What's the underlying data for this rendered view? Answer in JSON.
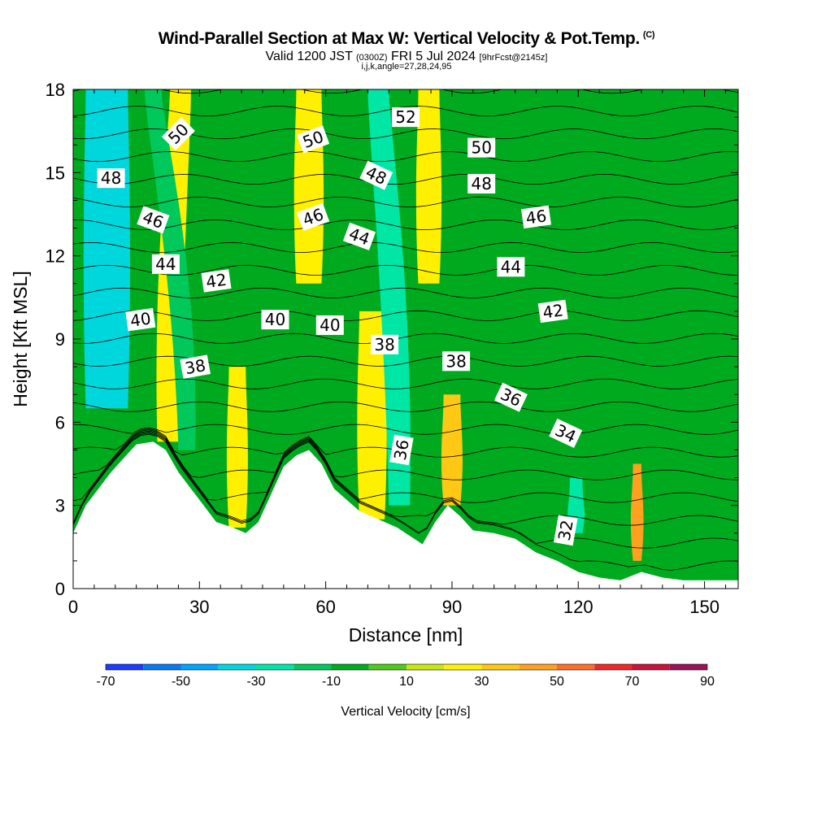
{
  "header": {
    "title": "Wind-Parallel Section at Max W: Vertical Velocity & Pot.Temp.",
    "copyright": "(C)",
    "valid_prefix": "Valid 1200 JST",
    "valid_utc": "(0300Z)",
    "valid_date": "FRI 5 Jul 2024",
    "forecast": "[9hrFcst@2145z]",
    "params": "i,j,k,angle=27,28,24,95"
  },
  "chart_data": {
    "type": "heatmap",
    "title": "Wind-Parallel Section at Max W: Vertical Velocity & Pot.Temp.",
    "xlabel": "Distance [nm]",
    "ylabel": "Height [Kft MSL]",
    "xlim": [
      0,
      158
    ],
    "ylim": [
      0,
      18
    ],
    "x_ticks": [
      "0",
      "30",
      "60",
      "90",
      "120",
      "150"
    ],
    "y_ticks": [
      "0",
      "3",
      "6",
      "9",
      "12",
      "15",
      "18"
    ],
    "colorbar": {
      "label": "Vertical Velocity [cm/s]",
      "tick_labels": [
        "-70",
        "-50",
        "-30",
        "-10",
        "10",
        "30",
        "50",
        "70",
        "90"
      ],
      "bins": [
        -70,
        -60,
        -50,
        -40,
        -30,
        -20,
        -10,
        0,
        10,
        20,
        30,
        40,
        50,
        60,
        70,
        80,
        90
      ],
      "colors": [
        "#1e3cff",
        "#0a78f0",
        "#00a5ff",
        "#00d7dc",
        "#00e6a5",
        "#00c85a",
        "#00aa1e",
        "#50c81e",
        "#c8e614",
        "#fff000",
        "#ffc814",
        "#ffa01e",
        "#ff6e28",
        "#f02828",
        "#c8143c",
        "#9b145a",
        "#6e0a8c"
      ]
    },
    "vertical_velocity_bands": [
      {
        "x": 3,
        "w": 10,
        "top_x_shift": 0,
        "top_y": 18,
        "bottom_y": 6.5,
        "bin": -40
      },
      {
        "x": 20,
        "w": 5,
        "top_x_shift": 3,
        "top_y": 18,
        "bottom_y": 5.3,
        "bin": 25
      },
      {
        "x": 25,
        "w": 4,
        "top_x_shift": -8,
        "top_y": 18,
        "bottom_y": 5,
        "bin": -20
      },
      {
        "x": 37,
        "w": 4,
        "top_x_shift": 0,
        "top_y": 8,
        "bottom_y": 2.2,
        "bin": 20
      },
      {
        "x": 53,
        "w": 6,
        "top_x_shift": 0,
        "top_y": 18,
        "bottom_y": 11,
        "bin": 20
      },
      {
        "x": 68,
        "w": 6,
        "top_x_shift": 0,
        "top_y": 10,
        "bottom_y": 2.5,
        "bin": 20
      },
      {
        "x": 75,
        "w": 5,
        "top_x_shift": -5,
        "top_y": 18,
        "bottom_y": 3,
        "bin": -30
      },
      {
        "x": 82,
        "w": 5,
        "top_x_shift": 0,
        "top_y": 18,
        "bottom_y": 11,
        "bin": 25
      },
      {
        "x": 88,
        "w": 4,
        "top_x_shift": 0,
        "top_y": 7,
        "bottom_y": 3,
        "bin": 30
      },
      {
        "x": 118,
        "w": 3,
        "top_x_shift": 0,
        "top_y": 4,
        "bottom_y": 2,
        "bin": -30
      },
      {
        "x": 133,
        "w": 2,
        "top_x_shift": 0,
        "top_y": 4.5,
        "bottom_y": 1,
        "bin": 40
      }
    ],
    "terrain_height_kft": [
      [
        0,
        2
      ],
      [
        3,
        3
      ],
      [
        6,
        3.6
      ],
      [
        9,
        4.2
      ],
      [
        12,
        4.7
      ],
      [
        15,
        5.2
      ],
      [
        19,
        5.3
      ],
      [
        22,
        5
      ],
      [
        25,
        4.2
      ],
      [
        28,
        3.6
      ],
      [
        31,
        3
      ],
      [
        34,
        2.4
      ],
      [
        38,
        2.2
      ],
      [
        41,
        2
      ],
      [
        44,
        2.4
      ],
      [
        47,
        3.4
      ],
      [
        50,
        4.4
      ],
      [
        53,
        4.8
      ],
      [
        56,
        5
      ],
      [
        59,
        4.5
      ],
      [
        62,
        3.6
      ],
      [
        65,
        3.2
      ],
      [
        68,
        2.8
      ],
      [
        71,
        2.6
      ],
      [
        74,
        2.4
      ],
      [
        77,
        2.2
      ],
      [
        80,
        1.9
      ],
      [
        83,
        1.6
      ],
      [
        86,
        2.4
      ],
      [
        89,
        3
      ],
      [
        92,
        2.6
      ],
      [
        95,
        2.1
      ],
      [
        100,
        2
      ],
      [
        105,
        1.8
      ],
      [
        110,
        1.3
      ],
      [
        115,
        1
      ],
      [
        120,
        0.6
      ],
      [
        125,
        0.4
      ],
      [
        130,
        0.3
      ],
      [
        135,
        0.6
      ],
      [
        140,
        0.4
      ],
      [
        145,
        0.3
      ],
      [
        150,
        0.3
      ],
      [
        158,
        0.3
      ]
    ],
    "potential_temperature_contours": {
      "interval": 1,
      "labeled_values": [
        "32",
        "34",
        "36",
        "38",
        "40",
        "42",
        "44",
        "46",
        "48",
        "50",
        "52"
      ],
      "labels": [
        {
          "text": "50",
          "x": 25,
          "y": 16.4,
          "angle": -45
        },
        {
          "text": "48",
          "x": 9,
          "y": 14.8,
          "angle": 0
        },
        {
          "text": "46",
          "x": 19,
          "y": 13.3,
          "angle": 20
        },
        {
          "text": "44",
          "x": 22,
          "y": 11.7,
          "angle": 0
        },
        {
          "text": "42",
          "x": 34,
          "y": 11.1,
          "angle": -8
        },
        {
          "text": "40",
          "x": 16,
          "y": 9.7,
          "angle": -8
        },
        {
          "text": "38",
          "x": 29,
          "y": 8.0,
          "angle": -10
        },
        {
          "text": "40",
          "x": 48,
          "y": 9.7,
          "angle": 0
        },
        {
          "text": "50",
          "x": 57,
          "y": 16.2,
          "angle": -20
        },
        {
          "text": "46",
          "x": 57,
          "y": 13.4,
          "angle": -20
        },
        {
          "text": "40",
          "x": 61,
          "y": 9.5,
          "angle": 0
        },
        {
          "text": "44",
          "x": 68,
          "y": 12.7,
          "angle": 20
        },
        {
          "text": "48",
          "x": 72,
          "y": 14.9,
          "angle": 25
        },
        {
          "text": "52",
          "x": 79,
          "y": 17.0,
          "angle": 0
        },
        {
          "text": "38",
          "x": 74,
          "y": 8.8,
          "angle": 0
        },
        {
          "text": "36",
          "x": 78,
          "y": 5.0,
          "angle": -80
        },
        {
          "text": "50",
          "x": 97,
          "y": 15.9,
          "angle": 0
        },
        {
          "text": "48",
          "x": 97,
          "y": 14.6,
          "angle": 0
        },
        {
          "text": "38",
          "x": 91,
          "y": 8.2,
          "angle": 0
        },
        {
          "text": "46",
          "x": 110,
          "y": 13.4,
          "angle": -8
        },
        {
          "text": "44",
          "x": 104,
          "y": 11.6,
          "angle": 0
        },
        {
          "text": "42",
          "x": 114,
          "y": 10.0,
          "angle": -8
        },
        {
          "text": "36",
          "x": 104,
          "y": 6.9,
          "angle": 25
        },
        {
          "text": "34",
          "x": 117,
          "y": 5.6,
          "angle": 25
        },
        {
          "text": "32",
          "x": 117,
          "y": 2.1,
          "angle": -80
        }
      ]
    }
  }
}
